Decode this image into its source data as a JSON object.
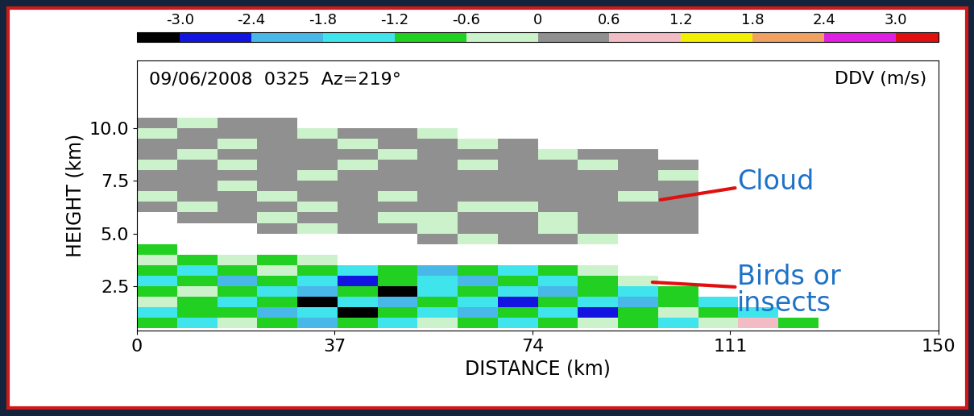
{
  "chart_data": {
    "type": "heatmap",
    "title": "09/06/2008  0325  Az=219°",
    "x_label": "DISTANCE (km)",
    "y_label": "HEIGHT (km)",
    "xlim": [
      0,
      150
    ],
    "ylim": [
      0.4,
      13.2
    ],
    "xticks": [
      0,
      37,
      74,
      111,
      150
    ],
    "yticks": [
      2.5,
      5.0,
      7.5,
      10.0
    ],
    "x_edges": [
      0,
      7.5,
      15,
      22.5,
      30,
      37.5,
      45,
      52.5,
      60,
      67.5,
      75,
      82.5,
      90,
      97.5,
      105,
      112.5,
      120,
      127.5,
      135,
      142.5,
      150
    ],
    "y_edges": [
      0.5,
      1.0,
      1.5,
      2.0,
      2.5,
      3.0,
      3.5,
      4.0,
      4.5,
      5.0,
      5.5,
      6.0,
      6.5,
      7.0,
      7.5,
      8.0,
      8.5,
      9.0,
      9.5,
      10.0,
      10.5
    ],
    "cells": [
      [
        -0.9,
        -1.5,
        -0.3,
        -0.9,
        -2.1,
        -0.9,
        -1.5,
        -0.3,
        -0.9,
        -1.5,
        -0.9,
        -0.3,
        -0.9,
        -1.5,
        -0.3,
        0.9,
        -0.9,
        null,
        null,
        null
      ],
      [
        -1.5,
        -0.9,
        -0.9,
        -2.1,
        -1.5,
        -3.3,
        -0.9,
        -1.5,
        -2.1,
        -0.9,
        -1.5,
        -2.7,
        -0.9,
        -0.3,
        -0.9,
        -1.5,
        null,
        null,
        null,
        null
      ],
      [
        -0.3,
        -0.9,
        -1.5,
        -0.9,
        -3.3,
        -1.5,
        -2.1,
        -0.9,
        -1.5,
        -2.7,
        -0.9,
        -1.5,
        -2.1,
        -0.9,
        -1.5,
        null,
        null,
        null,
        null,
        null
      ],
      [
        -0.9,
        -0.3,
        -0.9,
        -1.5,
        -2.1,
        -0.9,
        -3.3,
        -1.5,
        -0.9,
        -1.5,
        -2.1,
        -0.9,
        -1.5,
        -0.9,
        null,
        null,
        null,
        null,
        null,
        null
      ],
      [
        -1.5,
        -0.9,
        -2.1,
        -0.9,
        -1.5,
        -2.7,
        -0.9,
        -1.5,
        -2.1,
        -0.9,
        -1.5,
        -0.9,
        -0.3,
        null,
        null,
        null,
        null,
        null,
        null,
        null
      ],
      [
        -0.9,
        -1.5,
        -0.9,
        -0.3,
        -0.9,
        -1.5,
        -0.9,
        -2.1,
        -0.9,
        -1.5,
        -0.9,
        -0.3,
        null,
        null,
        null,
        null,
        null,
        null,
        null,
        null
      ],
      [
        -0.3,
        -0.9,
        -0.3,
        -0.9,
        -0.3,
        null,
        null,
        null,
        null,
        null,
        null,
        null,
        null,
        null,
        null,
        null,
        null,
        null,
        null,
        null
      ],
      [
        -0.9,
        null,
        null,
        null,
        null,
        null,
        null,
        null,
        null,
        null,
        null,
        null,
        null,
        null,
        null,
        null,
        null,
        null,
        null,
        null
      ],
      [
        null,
        null,
        null,
        null,
        null,
        null,
        null,
        0.3,
        -0.3,
        0.3,
        0.3,
        -0.3,
        null,
        null,
        null,
        null,
        null,
        null,
        null,
        null
      ],
      [
        null,
        null,
        null,
        0.3,
        -0.3,
        0.3,
        0.3,
        -0.3,
        0.3,
        0.3,
        -0.3,
        0.3,
        0.3,
        0.3,
        null,
        null,
        null,
        null,
        null,
        null
      ],
      [
        null,
        0.3,
        0.3,
        -0.3,
        0.3,
        0.3,
        -0.3,
        -0.3,
        0.3,
        0.3,
        -0.3,
        0.3,
        0.3,
        0.3,
        null,
        null,
        null,
        null,
        null,
        null
      ],
      [
        0.3,
        -0.3,
        0.3,
        0.3,
        -0.3,
        0.3,
        0.3,
        0.3,
        -0.3,
        -0.3,
        0.3,
        0.3,
        0.3,
        0.3,
        null,
        null,
        null,
        null,
        null,
        null
      ],
      [
        -0.3,
        0.3,
        0.3,
        -0.3,
        0.3,
        0.3,
        -0.3,
        0.3,
        0.3,
        0.3,
        0.3,
        0.3,
        -0.3,
        0.3,
        null,
        null,
        null,
        null,
        null,
        null
      ],
      [
        0.3,
        0.3,
        -0.3,
        0.3,
        0.3,
        0.3,
        0.3,
        0.3,
        0.3,
        0.3,
        0.3,
        0.3,
        0.3,
        0.3,
        null,
        null,
        null,
        null,
        null,
        null
      ],
      [
        0.3,
        0.3,
        0.3,
        0.3,
        -0.3,
        0.3,
        0.3,
        0.3,
        0.3,
        0.3,
        0.3,
        0.3,
        0.3,
        -0.3,
        null,
        null,
        null,
        null,
        null,
        null
      ],
      [
        -0.3,
        0.3,
        -0.3,
        0.3,
        0.3,
        -0.3,
        0.3,
        0.3,
        -0.3,
        0.3,
        0.3,
        -0.3,
        0.3,
        0.3,
        null,
        null,
        null,
        null,
        null,
        null
      ],
      [
        0.3,
        -0.3,
        0.3,
        0.3,
        0.3,
        0.3,
        -0.3,
        0.3,
        0.3,
        0.3,
        -0.3,
        0.3,
        0.3,
        null,
        null,
        null,
        null,
        null,
        null,
        null
      ],
      [
        0.3,
        0.3,
        -0.3,
        0.3,
        0.3,
        -0.3,
        0.3,
        0.3,
        -0.3,
        0.3,
        null,
        null,
        null,
        null,
        null,
        null,
        null,
        null,
        null,
        null
      ],
      [
        -0.3,
        0.3,
        0.3,
        0.3,
        -0.3,
        0.3,
        0.3,
        -0.3,
        null,
        null,
        null,
        null,
        null,
        null,
        null,
        null,
        null,
        null,
        null,
        null
      ],
      [
        0.3,
        -0.3,
        0.3,
        0.3,
        null,
        null,
        null,
        null,
        null,
        null,
        null,
        null,
        null,
        null,
        null,
        null,
        null,
        null,
        null,
        null
      ]
    ],
    "colorbar": {
      "label": "DDV (m/s)",
      "ticks": [
        -3.0,
        -2.4,
        -1.8,
        -1.2,
        -0.6,
        0,
        0.6,
        1.2,
        1.8,
        2.4,
        3.0
      ],
      "colors": [
        "#000000",
        "#1414e0",
        "#48b8e8",
        "#40e4ec",
        "#22d022",
        "#ccf2cc",
        "#909090",
        "#f2bcc4",
        "#f0f000",
        "#f0a060",
        "#e020e0",
        "#e01010"
      ]
    },
    "annotations": [
      "Cloud",
      "Birds or\ninsects"
    ]
  }
}
